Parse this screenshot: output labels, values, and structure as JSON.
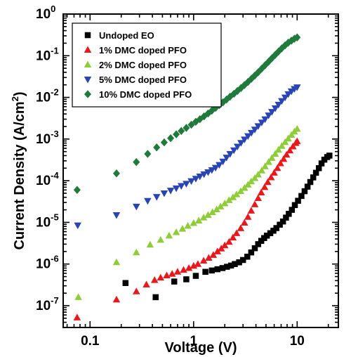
{
  "chart_data": {
    "type": "scatter",
    "title": "",
    "xlabel": "Voltage (V)",
    "ylabel": "Current Density (A/cm",
    "ylabel_sup": "2",
    "ylabel_end": ")",
    "xscale": "log",
    "yscale": "log",
    "xlim": [
      0.055,
      25
    ],
    "ylim": [
      3e-08,
      1
    ],
    "grid": false,
    "legend_position": "top-left",
    "x_ticks": [
      {
        "value": 0.1,
        "label": "0.1"
      },
      {
        "value": 1,
        "label": "1"
      },
      {
        "value": 10,
        "label": "10"
      }
    ],
    "y_ticks": [
      {
        "value": 1,
        "base": "10",
        "exp": "0"
      },
      {
        "value": 0.1,
        "base": "10",
        "exp": "-1"
      },
      {
        "value": 0.01,
        "base": "10",
        "exp": "-2"
      },
      {
        "value": 0.001,
        "base": "10",
        "exp": "-3"
      },
      {
        "value": 0.0001,
        "base": "10",
        "exp": "-4"
      },
      {
        "value": 1e-05,
        "base": "10",
        "exp": "-5"
      },
      {
        "value": 1e-06,
        "base": "10",
        "exp": "-6"
      },
      {
        "value": 1e-07,
        "base": "10",
        "exp": "-7"
      }
    ],
    "series": [
      {
        "name": "Undoped EO",
        "color": "#000000",
        "marker": "square",
        "points": [
          {
            "x": 0.22,
            "y": 3.5e-07
          },
          {
            "x": 0.43,
            "y": 1.6e-07
          },
          {
            "x": 0.65,
            "y": 3.8e-07
          },
          {
            "x": 0.85,
            "y": 4.3e-07
          },
          {
            "x": 1.05,
            "y": 5.2e-07
          },
          {
            "x": 1.3,
            "y": 6.5e-07
          },
          {
            "x": 1.5,
            "y": 7e-07
          },
          {
            "x": 1.7,
            "y": 7.5e-07
          },
          {
            "x": 1.9,
            "y": 8e-07
          },
          {
            "x": 2.1,
            "y": 8.6e-07
          },
          {
            "x": 2.3,
            "y": 9.2e-07
          },
          {
            "x": 2.5,
            "y": 1e-06
          },
          {
            "x": 2.75,
            "y": 1.1e-06
          },
          {
            "x": 3.0,
            "y": 1.25e-06
          },
          {
            "x": 3.3,
            "y": 1.5e-06
          },
          {
            "x": 3.6,
            "y": 1.9e-06
          },
          {
            "x": 3.9,
            "y": 2.4e-06
          },
          {
            "x": 4.2,
            "y": 3e-06
          },
          {
            "x": 4.5,
            "y": 3.6e-06
          },
          {
            "x": 4.8,
            "y": 4.2e-06
          },
          {
            "x": 5.1,
            "y": 4.8e-06
          },
          {
            "x": 5.5,
            "y": 5.5e-06
          },
          {
            "x": 5.9,
            "y": 6.3e-06
          },
          {
            "x": 6.3,
            "y": 7.3e-06
          },
          {
            "x": 6.8,
            "y": 8.8e-06
          },
          {
            "x": 7.3,
            "y": 1.05e-05
          },
          {
            "x": 7.8,
            "y": 1.3e-05
          },
          {
            "x": 8.3,
            "y": 1.6e-05
          },
          {
            "x": 8.9,
            "y": 2e-05
          },
          {
            "x": 9.5,
            "y": 2.6e-05
          },
          {
            "x": 10.2,
            "y": 3.3e-05
          },
          {
            "x": 11.0,
            "y": 4.3e-05
          },
          {
            "x": 11.8,
            "y": 5.6e-05
          },
          {
            "x": 12.6,
            "y": 7.2e-05
          },
          {
            "x": 13.4,
            "y": 9.3e-05
          },
          {
            "x": 14.3,
            "y": 0.00012
          },
          {
            "x": 15.2,
            "y": 0.000155
          },
          {
            "x": 16.2,
            "y": 0.0002
          },
          {
            "x": 17.2,
            "y": 0.00026
          },
          {
            "x": 18.3,
            "y": 0.00032
          },
          {
            "x": 19.5,
            "y": 0.00037
          },
          {
            "x": 20.5,
            "y": 0.0004
          }
        ]
      },
      {
        "name": "1% DMC doped PFO",
        "color": "#e8191c",
        "marker": "triangle-up",
        "points": [
          {
            "x": 0.075,
            "y": 5.2e-08
          },
          {
            "x": 0.18,
            "y": 1.4e-07
          },
          {
            "x": 0.28,
            "y": 2.2e-07
          },
          {
            "x": 0.35,
            "y": 3.2e-07
          },
          {
            "x": 0.42,
            "y": 4.1e-07
          },
          {
            "x": 0.48,
            "y": 4.7e-07
          },
          {
            "x": 0.55,
            "y": 5.3e-07
          },
          {
            "x": 0.62,
            "y": 5.8e-07
          },
          {
            "x": 0.7,
            "y": 6.5e-07
          },
          {
            "x": 0.8,
            "y": 7.2e-07
          },
          {
            "x": 0.9,
            "y": 8e-07
          },
          {
            "x": 1.0,
            "y": 9e-07
          },
          {
            "x": 1.1,
            "y": 1e-06
          },
          {
            "x": 1.25,
            "y": 1.2e-06
          },
          {
            "x": 1.4,
            "y": 1.4e-06
          },
          {
            "x": 1.55,
            "y": 1.65e-06
          },
          {
            "x": 1.7,
            "y": 2e-06
          },
          {
            "x": 1.85,
            "y": 2.35e-06
          },
          {
            "x": 2.0,
            "y": 2.8e-06
          },
          {
            "x": 2.2,
            "y": 3.4e-06
          },
          {
            "x": 2.4,
            "y": 4.3e-06
          },
          {
            "x": 2.6,
            "y": 5.5e-06
          },
          {
            "x": 2.85,
            "y": 7.2e-06
          },
          {
            "x": 3.1,
            "y": 9.8e-06
          },
          {
            "x": 3.35,
            "y": 1.35e-05
          },
          {
            "x": 3.6,
            "y": 1.9e-05
          },
          {
            "x": 3.9,
            "y": 2.7e-05
          },
          {
            "x": 4.2,
            "y": 3.8e-05
          },
          {
            "x": 4.5,
            "y": 5.2e-05
          },
          {
            "x": 4.85,
            "y": 7e-05
          },
          {
            "x": 5.2,
            "y": 9.2e-05
          },
          {
            "x": 5.6,
            "y": 0.00012
          },
          {
            "x": 6.0,
            "y": 0.000155
          },
          {
            "x": 6.45,
            "y": 0.0002
          },
          {
            "x": 6.9,
            "y": 0.00026
          },
          {
            "x": 7.4,
            "y": 0.00033
          },
          {
            "x": 7.9,
            "y": 0.00042
          },
          {
            "x": 8.5,
            "y": 0.00053
          },
          {
            "x": 9.1,
            "y": 0.00066
          },
          {
            "x": 9.7,
            "y": 0.0008
          },
          {
            "x": 10.0,
            "y": 0.00088
          }
        ]
      },
      {
        "name": "2% DMC doped PFO",
        "color": "#8fcc3a",
        "marker": "triangle-up",
        "points": [
          {
            "x": 0.077,
            "y": 1.6e-07
          },
          {
            "x": 0.18,
            "y": 1.1e-06
          },
          {
            "x": 0.28,
            "y": 1.9e-06
          },
          {
            "x": 0.38,
            "y": 2.9e-06
          },
          {
            "x": 0.48,
            "y": 3.8e-06
          },
          {
            "x": 0.58,
            "y": 4.8e-06
          },
          {
            "x": 0.68,
            "y": 5.8e-06
          },
          {
            "x": 0.78,
            "y": 7e-06
          },
          {
            "x": 0.88,
            "y": 8.2e-06
          },
          {
            "x": 1.0,
            "y": 9.6e-06
          },
          {
            "x": 1.12,
            "y": 1.1e-05
          },
          {
            "x": 1.25,
            "y": 1.3e-05
          },
          {
            "x": 1.38,
            "y": 1.5e-05
          },
          {
            "x": 1.52,
            "y": 1.75e-05
          },
          {
            "x": 1.67,
            "y": 2.05e-05
          },
          {
            "x": 1.82,
            "y": 2.4e-05
          },
          {
            "x": 2.0,
            "y": 2.85e-05
          },
          {
            "x": 2.2,
            "y": 3.4e-05
          },
          {
            "x": 2.4,
            "y": 4e-05
          },
          {
            "x": 2.6,
            "y": 4.7e-05
          },
          {
            "x": 2.85,
            "y": 5.6e-05
          },
          {
            "x": 3.1,
            "y": 6.7e-05
          },
          {
            "x": 3.35,
            "y": 8e-05
          },
          {
            "x": 3.6,
            "y": 9.6e-05
          },
          {
            "x": 3.9,
            "y": 0.000115
          },
          {
            "x": 4.2,
            "y": 0.00014
          },
          {
            "x": 4.55,
            "y": 0.000175
          },
          {
            "x": 4.9,
            "y": 0.00022
          },
          {
            "x": 5.3,
            "y": 0.00028
          },
          {
            "x": 5.7,
            "y": 0.00035
          },
          {
            "x": 6.15,
            "y": 0.00044
          },
          {
            "x": 6.6,
            "y": 0.00055
          },
          {
            "x": 7.1,
            "y": 0.00068
          },
          {
            "x": 7.65,
            "y": 0.00084
          },
          {
            "x": 8.2,
            "y": 0.00102
          },
          {
            "x": 8.8,
            "y": 0.00125
          },
          {
            "x": 9.4,
            "y": 0.0015
          },
          {
            "x": 10.0,
            "y": 0.00175
          }
        ]
      },
      {
        "name": "5% DMC doped PFO",
        "color": "#2a45b3",
        "marker": "triangle-down",
        "points": [
          {
            "x": 0.076,
            "y": 8.5e-06
          },
          {
            "x": 0.18,
            "y": 1.5e-05
          },
          {
            "x": 0.28,
            "y": 2.4e-05
          },
          {
            "x": 0.36,
            "y": 3.3e-05
          },
          {
            "x": 0.44,
            "y": 4.1e-05
          },
          {
            "x": 0.52,
            "y": 5e-05
          },
          {
            "x": 0.6,
            "y": 5.8e-05
          },
          {
            "x": 0.68,
            "y": 6.6e-05
          },
          {
            "x": 0.76,
            "y": 7.5e-05
          },
          {
            "x": 0.85,
            "y": 8.5e-05
          },
          {
            "x": 0.95,
            "y": 9.8e-05
          },
          {
            "x": 1.05,
            "y": 0.000112
          },
          {
            "x": 1.15,
            "y": 0.000127
          },
          {
            "x": 1.26,
            "y": 0.000143
          },
          {
            "x": 1.38,
            "y": 0.00016
          },
          {
            "x": 1.5,
            "y": 0.00018
          },
          {
            "x": 1.63,
            "y": 0.000205
          },
          {
            "x": 1.77,
            "y": 0.00024
          },
          {
            "x": 1.92,
            "y": 0.00029
          },
          {
            "x": 2.08,
            "y": 0.00036
          },
          {
            "x": 2.25,
            "y": 0.00044
          },
          {
            "x": 2.45,
            "y": 0.00054
          },
          {
            "x": 2.65,
            "y": 0.00066
          },
          {
            "x": 2.87,
            "y": 0.00081
          },
          {
            "x": 3.1,
            "y": 0.00098
          },
          {
            "x": 3.35,
            "y": 0.00118
          },
          {
            "x": 3.62,
            "y": 0.00142
          },
          {
            "x": 3.9,
            "y": 0.0017
          },
          {
            "x": 4.2,
            "y": 0.00205
          },
          {
            "x": 4.55,
            "y": 0.0025
          },
          {
            "x": 4.9,
            "y": 0.003
          },
          {
            "x": 5.3,
            "y": 0.0037
          },
          {
            "x": 5.7,
            "y": 0.0045
          },
          {
            "x": 6.15,
            "y": 0.0055
          },
          {
            "x": 6.6,
            "y": 0.0067
          },
          {
            "x": 7.1,
            "y": 0.0082
          },
          {
            "x": 7.65,
            "y": 0.01
          },
          {
            "x": 8.2,
            "y": 0.012
          },
          {
            "x": 8.8,
            "y": 0.014
          },
          {
            "x": 9.4,
            "y": 0.016
          },
          {
            "x": 10.0,
            "y": 0.0175
          }
        ]
      },
      {
        "name": "10% DMC doped PFO",
        "color": "#1f7a3c",
        "marker": "diamond",
        "points": [
          {
            "x": 0.075,
            "y": 6e-05
          },
          {
            "x": 0.18,
            "y": 0.00015
          },
          {
            "x": 0.28,
            "y": 0.00028
          },
          {
            "x": 0.36,
            "y": 0.00044
          },
          {
            "x": 0.44,
            "y": 0.00063
          },
          {
            "x": 0.52,
            "y": 0.00083
          },
          {
            "x": 0.6,
            "y": 0.00105
          },
          {
            "x": 0.68,
            "y": 0.0013
          },
          {
            "x": 0.76,
            "y": 0.00156
          },
          {
            "x": 0.85,
            "y": 0.00185
          },
          {
            "x": 0.95,
            "y": 0.0022
          },
          {
            "x": 1.05,
            "y": 0.0026
          },
          {
            "x": 1.15,
            "y": 0.003
          },
          {
            "x": 1.26,
            "y": 0.0035
          },
          {
            "x": 1.38,
            "y": 0.0041
          },
          {
            "x": 1.5,
            "y": 0.0048
          },
          {
            "x": 1.63,
            "y": 0.0056
          },
          {
            "x": 1.77,
            "y": 0.0065
          },
          {
            "x": 1.92,
            "y": 0.0076
          },
          {
            "x": 2.08,
            "y": 0.0089
          },
          {
            "x": 2.25,
            "y": 0.0104
          },
          {
            "x": 2.45,
            "y": 0.0122
          },
          {
            "x": 2.65,
            "y": 0.0143
          },
          {
            "x": 2.87,
            "y": 0.0168
          },
          {
            "x": 3.1,
            "y": 0.0198
          },
          {
            "x": 3.35,
            "y": 0.0235
          },
          {
            "x": 3.62,
            "y": 0.028
          },
          {
            "x": 3.9,
            "y": 0.0335
          },
          {
            "x": 4.2,
            "y": 0.04
          },
          {
            "x": 4.55,
            "y": 0.049
          },
          {
            "x": 4.9,
            "y": 0.059
          },
          {
            "x": 5.3,
            "y": 0.072
          },
          {
            "x": 5.7,
            "y": 0.087
          },
          {
            "x": 6.15,
            "y": 0.105
          },
          {
            "x": 6.6,
            "y": 0.126
          },
          {
            "x": 7.1,
            "y": 0.15
          },
          {
            "x": 7.65,
            "y": 0.178
          },
          {
            "x": 8.2,
            "y": 0.205
          },
          {
            "x": 8.8,
            "y": 0.23
          },
          {
            "x": 9.4,
            "y": 0.255
          },
          {
            "x": 10.0,
            "y": 0.275
          }
        ]
      }
    ]
  }
}
